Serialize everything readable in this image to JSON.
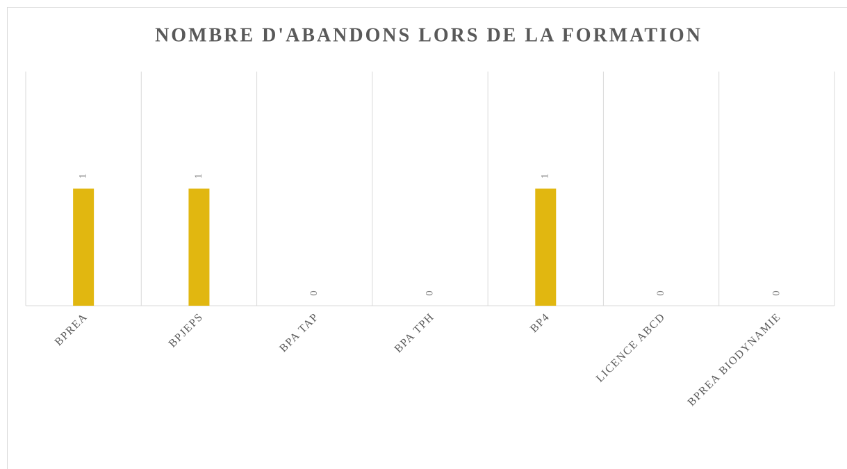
{
  "chart_data": {
    "type": "bar",
    "title": "NOMBRE D'ABANDONS LORS DE LA FORMATION",
    "categories": [
      "BPREA",
      "BPJEPS",
      "BPA TAP",
      "BPA TPH",
      "BP4",
      "LICENCE ABCD",
      "BPREA BIODYNAMIE"
    ],
    "values": [
      1,
      1,
      0,
      0,
      1,
      0,
      0
    ],
    "color": "#e1b710",
    "ylim": [
      0,
      2
    ],
    "grid": true
  }
}
